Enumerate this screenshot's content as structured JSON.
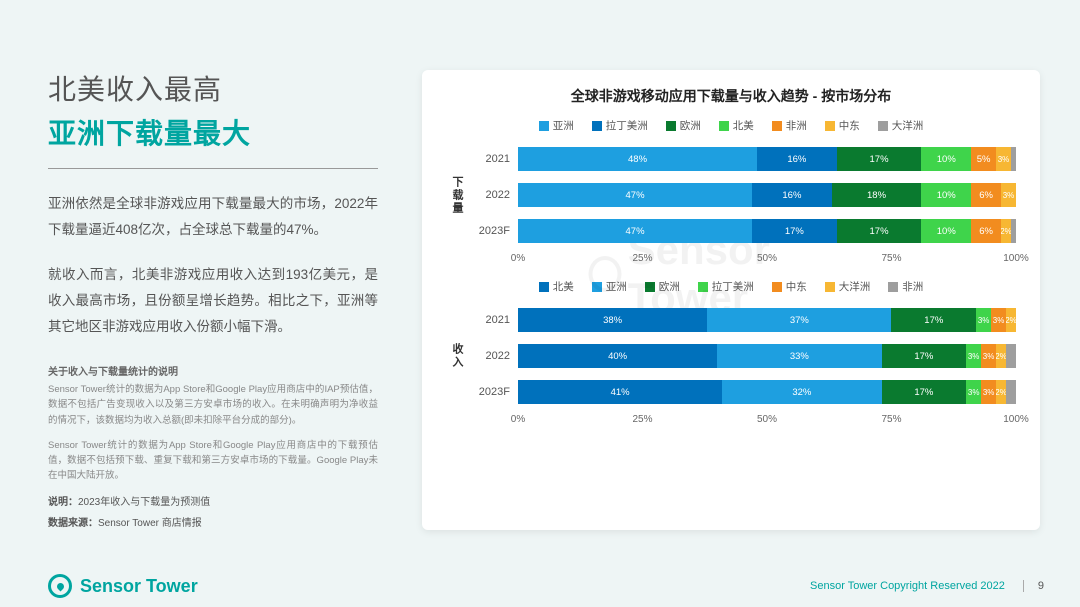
{
  "title": {
    "line1": "北美收入最高",
    "line2": "亚洲下载量最大"
  },
  "paragraphs": [
    "亚洲依然是全球非游戏应用下载量最大的市场，2022年下载量逼近408亿次，占全球总下载量的47%。",
    "就收入而言，北美非游戏应用收入达到193亿美元，是收入最高市场，且份额呈增长趋势。相比之下，亚洲等其它地区非游戏应用收入份额小幅下滑。"
  ],
  "notes": {
    "head": "关于收入与下载量统计的说明",
    "body": [
      "Sensor Tower统计的数据为App Store和Google Play应用商店中的IAP预估值，数据不包括广告变现收入以及第三方安卓市场的收入。在未明确声明为净收益的情况下，该数据均为收入总额(即未扣除平台分成的部分)。",
      "Sensor Tower统计的数据为App Store和Google Play应用商店中的下载预估值，数据不包括预下载、重复下载和第三方安卓市场的下载量。Google Play未在中国大陆开放。"
    ],
    "src_label": "说明：",
    "src_text": "2023年收入与下载量为预测值",
    "data_src_label": "数据来源：",
    "data_src_text": "Sensor Tower 商店情报"
  },
  "chart": {
    "title": "全球非游戏移动应用下载量与收入趋势 - 按市场分布",
    "axis_ticks": [
      "0%",
      "25%",
      "50%",
      "75%",
      "100%"
    ],
    "watermark": "Sensor Tower",
    "blocks": [
      {
        "label": "下载量",
        "legend": [
          {
            "name": "亚洲",
            "color": "#1e9fe0"
          },
          {
            "name": "拉丁美洲",
            "color": "#0071bc"
          },
          {
            "name": "欧洲",
            "color": "#0a7a2f"
          },
          {
            "name": "北美",
            "color": "#3fd44b"
          },
          {
            "name": "非洲",
            "color": "#f28c1f"
          },
          {
            "name": "中东",
            "color": "#f7b733"
          },
          {
            "name": "大洋洲",
            "color": "#9e9e9e"
          }
        ],
        "rows": [
          {
            "label": "2021",
            "segs": [
              {
                "v": 48,
                "c": "#1e9fe0",
                "t": "48%"
              },
              {
                "v": 16,
                "c": "#0071bc",
                "t": "16%"
              },
              {
                "v": 17,
                "c": "#0a7a2f",
                "t": "17%"
              },
              {
                "v": 10,
                "c": "#3fd44b",
                "t": "10%"
              },
              {
                "v": 5,
                "c": "#f28c1f",
                "t": "5%"
              },
              {
                "v": 3,
                "c": "#f7b733",
                "t": "3%"
              },
              {
                "v": 1,
                "c": "#9e9e9e",
                "t": ""
              }
            ]
          },
          {
            "label": "2022",
            "segs": [
              {
                "v": 47,
                "c": "#1e9fe0",
                "t": "47%"
              },
              {
                "v": 16,
                "c": "#0071bc",
                "t": "16%"
              },
              {
                "v": 18,
                "c": "#0a7a2f",
                "t": "18%"
              },
              {
                "v": 10,
                "c": "#3fd44b",
                "t": "10%"
              },
              {
                "v": 6,
                "c": "#f28c1f",
                "t": "6%"
              },
              {
                "v": 3,
                "c": "#f7b733",
                "t": "3%"
              },
              {
                "v": 0,
                "c": "#9e9e9e",
                "t": ""
              }
            ]
          },
          {
            "label": "2023F",
            "segs": [
              {
                "v": 47,
                "c": "#1e9fe0",
                "t": "47%"
              },
              {
                "v": 17,
                "c": "#0071bc",
                "t": "17%"
              },
              {
                "v": 17,
                "c": "#0a7a2f",
                "t": "17%"
              },
              {
                "v": 10,
                "c": "#3fd44b",
                "t": "10%"
              },
              {
                "v": 6,
                "c": "#f28c1f",
                "t": "6%"
              },
              {
                "v": 2,
                "c": "#f7b733",
                "t": "2%"
              },
              {
                "v": 1,
                "c": "#9e9e9e",
                "t": ""
              }
            ]
          }
        ]
      },
      {
        "label": "收入",
        "legend": [
          {
            "name": "北美",
            "color": "#0071bc"
          },
          {
            "name": "亚洲",
            "color": "#1e9fe0"
          },
          {
            "name": "欧洲",
            "color": "#0a7a2f"
          },
          {
            "name": "拉丁美洲",
            "color": "#3fd44b"
          },
          {
            "name": "中东",
            "color": "#f28c1f"
          },
          {
            "name": "大洋洲",
            "color": "#f7b733"
          },
          {
            "name": "非洲",
            "color": "#9e9e9e"
          }
        ],
        "rows": [
          {
            "label": "2021",
            "segs": [
              {
                "v": 38,
                "c": "#0071bc",
                "t": "38%"
              },
              {
                "v": 37,
                "c": "#1e9fe0",
                "t": "37%"
              },
              {
                "v": 17,
                "c": "#0a7a2f",
                "t": "17%"
              },
              {
                "v": 3,
                "c": "#3fd44b",
                "t": "3%"
              },
              {
                "v": 3,
                "c": "#f28c1f",
                "t": "3%"
              },
              {
                "v": 2,
                "c": "#f7b733",
                "t": "2%"
              },
              {
                "v": 0,
                "c": "#9e9e9e",
                "t": ""
              }
            ]
          },
          {
            "label": "2022",
            "segs": [
              {
                "v": 40,
                "c": "#0071bc",
                "t": "40%"
              },
              {
                "v": 33,
                "c": "#1e9fe0",
                "t": "33%"
              },
              {
                "v": 17,
                "c": "#0a7a2f",
                "t": "17%"
              },
              {
                "v": 3,
                "c": "#3fd44b",
                "t": "3%"
              },
              {
                "v": 3,
                "c": "#f28c1f",
                "t": "3%"
              },
              {
                "v": 2,
                "c": "#f7b733",
                "t": "2%"
              },
              {
                "v": 2,
                "c": "#9e9e9e",
                "t": ""
              }
            ]
          },
          {
            "label": "2023F",
            "segs": [
              {
                "v": 41,
                "c": "#0071bc",
                "t": "41%"
              },
              {
                "v": 32,
                "c": "#1e9fe0",
                "t": "32%"
              },
              {
                "v": 17,
                "c": "#0a7a2f",
                "t": "17%"
              },
              {
                "v": 3,
                "c": "#3fd44b",
                "t": "3%"
              },
              {
                "v": 3,
                "c": "#f28c1f",
                "t": "3%"
              },
              {
                "v": 2,
                "c": "#f7b733",
                "t": "2%"
              },
              {
                "v": 2,
                "c": "#9e9e9e",
                "t": ""
              }
            ]
          }
        ]
      }
    ]
  },
  "footer": {
    "logo": "Sensor Tower",
    "copyright": "Sensor Tower Copyright Reserved 2022",
    "page": "9"
  }
}
